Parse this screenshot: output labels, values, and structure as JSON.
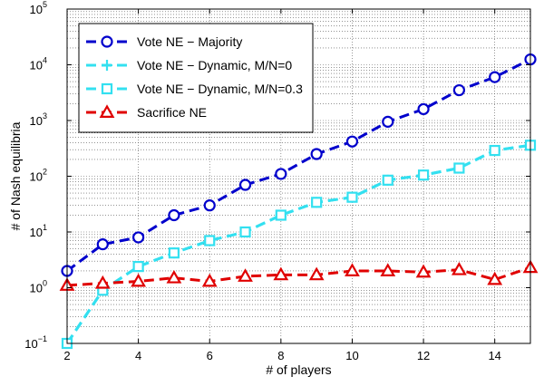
{
  "chart_data": {
    "type": "line",
    "title": "",
    "xlabel": "# of players",
    "ylabel": "# of Nash equilibria",
    "xlim": [
      2,
      15
    ],
    "ylim": [
      0.1,
      100000
    ],
    "yscale": "log",
    "grid": true,
    "legend_position": "top-left",
    "x_ticks": [
      "2",
      "4",
      "6",
      "8",
      "10",
      "12",
      "14"
    ],
    "y_ticks": [
      {
        "base": "10",
        "exp": "−1"
      },
      {
        "base": "10",
        "exp": "0"
      },
      {
        "base": "10",
        "exp": "1"
      },
      {
        "base": "10",
        "exp": "2"
      },
      {
        "base": "10",
        "exp": "3"
      },
      {
        "base": "10",
        "exp": "4"
      },
      {
        "base": "10",
        "exp": "5"
      }
    ],
    "x": [
      2,
      3,
      4,
      5,
      6,
      7,
      8,
      9,
      10,
      11,
      12,
      13,
      14,
      15
    ],
    "series": [
      {
        "name": "Vote NE − Majority",
        "color": "#0000cc",
        "marker": "circle",
        "values": [
          2,
          6,
          8,
          20,
          30,
          70,
          110,
          250,
          420,
          950,
          1600,
          3500,
          6000,
          12500
        ]
      },
      {
        "name": "Vote NE − Dynamic, M/N=0",
        "color": "#33e0f0",
        "marker": "plus",
        "values": [
          0.1,
          0.9,
          2.4,
          4.2,
          7,
          10,
          20,
          34,
          42,
          85,
          105,
          140,
          290,
          360
        ]
      },
      {
        "name": "Vote NE − Dynamic, M/N=0.3",
        "color": "#33e0f0",
        "marker": "square",
        "values": [
          0.1,
          0.9,
          2.4,
          4.2,
          7,
          10,
          20,
          34,
          42,
          85,
          105,
          140,
          290,
          360
        ]
      },
      {
        "name": "Sacrifice NE",
        "color": "#e00000",
        "marker": "triangle",
        "values": [
          1.1,
          1.2,
          1.3,
          1.5,
          1.3,
          1.6,
          1.7,
          1.7,
          2.0,
          2.0,
          1.9,
          2.1,
          1.4,
          2.3
        ]
      }
    ]
  }
}
